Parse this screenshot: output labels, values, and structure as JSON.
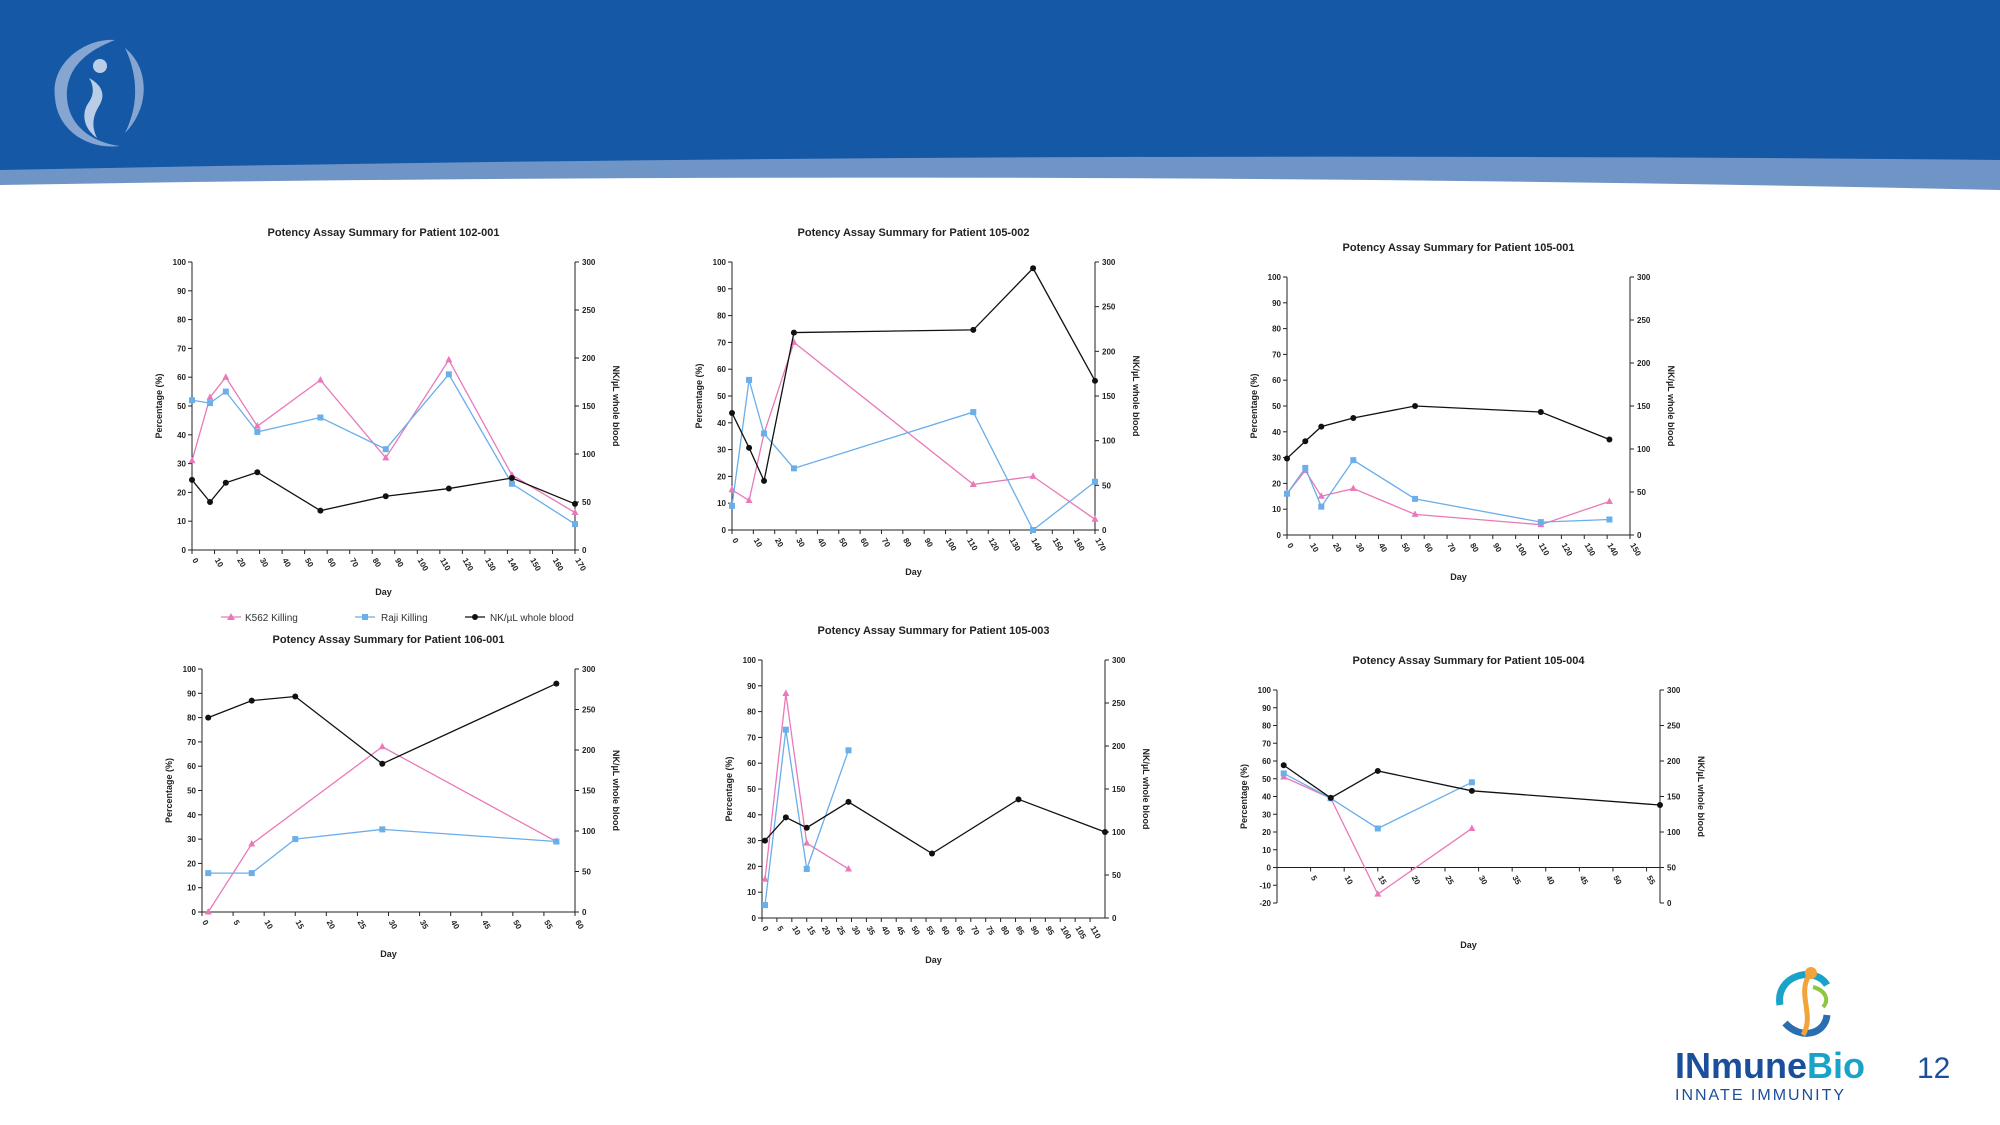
{
  "slide": {
    "page_number": "12"
  },
  "brand": {
    "name_part1": "INmune",
    "name_part2": "Bio",
    "tagline": "INNATE IMMUNITY"
  },
  "legend": {
    "k562_label": "K562 Killing",
    "raji_label": "Raji Killing",
    "nk_label": "NK/µL whole blood"
  },
  "colors": {
    "header": "#1458a6",
    "header_light": "#6f95c6",
    "k562": "#ea79b9",
    "raji": "#6aaeea",
    "nk": "#111111"
  },
  "chart_data": [
    {
      "id": "p102-001",
      "type": "line",
      "title": "Potency Assay Summary for Patient 102-001",
      "xlabel": "Day",
      "ylabel": "Percentage (%)",
      "y2label": "NK/µL whole blood",
      "xlim": [
        0,
        170
      ],
      "xticks": [
        0,
        10,
        20,
        30,
        40,
        50,
        60,
        70,
        80,
        90,
        100,
        110,
        120,
        130,
        140,
        150,
        160,
        170
      ],
      "ylim": [
        0,
        100
      ],
      "yticks": [
        0,
        10,
        20,
        30,
        40,
        50,
        60,
        70,
        80,
        90,
        100
      ],
      "y2lim": [
        0,
        300
      ],
      "y2ticks": [
        0,
        50,
        100,
        150,
        200,
        250,
        300
      ],
      "series": [
        {
          "name": "K562 Killing",
          "axis": "y",
          "marker": "triangle",
          "x": [
            0,
            8,
            15,
            29,
            57,
            86,
            114,
            142,
            170
          ],
          "values": [
            31,
            53,
            60,
            43,
            59,
            32,
            66,
            26,
            13
          ]
        },
        {
          "name": "Raji Killing",
          "axis": "y",
          "marker": "square",
          "x": [
            0,
            8,
            15,
            29,
            57,
            86,
            114,
            142,
            170
          ],
          "values": [
            52,
            51,
            55,
            41,
            46,
            35,
            61,
            23,
            9
          ]
        },
        {
          "name": "NK/µL whole blood",
          "axis": "y2",
          "marker": "circle",
          "x": [
            0,
            8,
            15,
            29,
            57,
            86,
            114,
            142,
            170
          ],
          "values": [
            73,
            50,
            70,
            81,
            41,
            56,
            64,
            75,
            48
          ]
        }
      ]
    },
    {
      "id": "p105-002",
      "type": "line",
      "title": "Potency  Assay  Summary for Patient 105-002",
      "xlabel": "Day",
      "ylabel": "Percentage (%)",
      "y2label": "NK/µL whole blood",
      "xlim": [
        0,
        170
      ],
      "xticks": [
        0,
        10,
        20,
        30,
        40,
        50,
        60,
        70,
        80,
        90,
        100,
        110,
        120,
        130,
        140,
        150,
        160,
        170
      ],
      "ylim": [
        0,
        100
      ],
      "yticks": [
        0,
        10,
        20,
        30,
        40,
        50,
        60,
        70,
        80,
        90,
        100
      ],
      "y2lim": [
        0,
        300
      ],
      "y2ticks": [
        0,
        50,
        100,
        150,
        200,
        250,
        300
      ],
      "series": [
        {
          "name": "K562 Killing",
          "axis": "y",
          "marker": "triangle",
          "x": [
            0,
            8,
            15,
            29,
            113,
            141,
            170
          ],
          "values": [
            15,
            11,
            36,
            70,
            17,
            20,
            4
          ]
        },
        {
          "name": "Raji Killing",
          "axis": "y",
          "marker": "square",
          "x": [
            0,
            8,
            15,
            29,
            113,
            141,
            170
          ],
          "values": [
            9,
            56,
            36,
            23,
            44,
            0,
            18
          ]
        },
        {
          "name": "NK/µL whole blood",
          "axis": "y2",
          "marker": "circle",
          "x": [
            0,
            8,
            15,
            29,
            113,
            141,
            170
          ],
          "values": [
            131,
            92,
            55,
            221,
            224,
            293,
            167
          ]
        }
      ]
    },
    {
      "id": "p105-001",
      "type": "line",
      "title": "Potency  Assay  Summary for Patient 105-001",
      "xlabel": "Day",
      "ylabel": "Percentage (%)",
      "y2label": "NK/µL whole blood",
      "xlim": [
        0,
        150
      ],
      "xticks": [
        0,
        10,
        20,
        30,
        40,
        50,
        60,
        70,
        80,
        90,
        100,
        110,
        120,
        130,
        140,
        150
      ],
      "ylim": [
        0,
        100
      ],
      "yticks": [
        0,
        10,
        20,
        30,
        40,
        50,
        60,
        70,
        80,
        90,
        100
      ],
      "y2lim": [
        0,
        300
      ],
      "y2ticks": [
        0,
        50,
        100,
        150,
        200,
        250,
        300
      ],
      "series": [
        {
          "name": "K562 Killing",
          "axis": "y",
          "marker": "triangle",
          "x": [
            0,
            8,
            15,
            29,
            56,
            111,
            141
          ],
          "values": [
            16,
            25,
            15,
            18,
            8,
            4,
            13
          ]
        },
        {
          "name": "Raji Killing",
          "axis": "y",
          "marker": "square",
          "x": [
            0,
            8,
            15,
            29,
            56,
            111,
            141
          ],
          "values": [
            16,
            26,
            11,
            29,
            14,
            5,
            6
          ]
        },
        {
          "name": "NK/µL whole blood",
          "axis": "y2",
          "marker": "circle",
          "x": [
            0,
            8,
            15,
            29,
            56,
            111,
            141
          ],
          "values": [
            89,
            109,
            126,
            136,
            150,
            143,
            111
          ]
        }
      ]
    },
    {
      "id": "p106-001",
      "type": "line",
      "title": "Potency Assay Summary for Patient 106-001",
      "xlabel": "Day",
      "ylabel": "Percentage (%)",
      "y2label": "NK/µL whole blood",
      "xlim": [
        0,
        60
      ],
      "xticks": [
        0,
        5,
        10,
        15,
        20,
        25,
        30,
        35,
        40,
        45,
        50,
        55,
        60
      ],
      "ylim": [
        0,
        100
      ],
      "yticks": [
        0,
        10,
        20,
        30,
        40,
        50,
        60,
        70,
        80,
        90,
        100
      ],
      "y2lim": [
        0,
        300
      ],
      "y2ticks": [
        0,
        50,
        100,
        150,
        200,
        250,
        300
      ],
      "series": [
        {
          "name": "K562 Killing",
          "axis": "y",
          "marker": "triangle",
          "x": [
            1,
            8,
            15,
            29,
            57
          ],
          "values": [
            0,
            28,
            null,
            68,
            29
          ]
        },
        {
          "name": "Raji Killing",
          "axis": "y",
          "marker": "square",
          "x": [
            1,
            8,
            15,
            29,
            57
          ],
          "values": [
            16,
            16,
            30,
            34,
            29
          ]
        },
        {
          "name": "NK/µL whole blood",
          "axis": "y2",
          "marker": "circle",
          "x": [
            1,
            8,
            15,
            29,
            57
          ],
          "values": [
            240,
            261,
            266,
            183,
            282
          ]
        }
      ]
    },
    {
      "id": "p105-003",
      "type": "line",
      "title": "Potency Assay Summary for Patient 105-003",
      "xlabel": "Day",
      "ylabel": "Percentage (%)",
      "y2label": "NK/µL whole blood",
      "xlim": [
        0,
        115
      ],
      "xticks": [
        0,
        5,
        10,
        15,
        20,
        25,
        30,
        35,
        40,
        45,
        50,
        55,
        60,
        65,
        70,
        75,
        80,
        85,
        90,
        95,
        100,
        105,
        110
      ],
      "ylim": [
        0,
        100
      ],
      "yticks": [
        0,
        10,
        20,
        30,
        40,
        50,
        60,
        70,
        80,
        90,
        100
      ],
      "y2lim": [
        0,
        300
      ],
      "y2ticks": [
        0,
        50,
        100,
        150,
        200,
        250,
        300
      ],
      "series": [
        {
          "name": "K562 Killing",
          "axis": "y",
          "marker": "triangle",
          "x": [
            1,
            8,
            15,
            29
          ],
          "values": [
            15,
            87,
            29,
            19
          ]
        },
        {
          "name": "Raji Killing",
          "axis": "y",
          "marker": "square",
          "x": [
            1,
            8,
            15,
            29
          ],
          "values": [
            5,
            73,
            19,
            65
          ]
        },
        {
          "name": "NK/µL whole blood",
          "axis": "y2",
          "marker": "circle",
          "x": [
            1,
            8,
            15,
            29,
            57,
            86,
            115
          ],
          "values": [
            90,
            117,
            105,
            135,
            75,
            138,
            100
          ]
        }
      ]
    },
    {
      "id": "p105-004",
      "type": "line",
      "title": "Potency Assay Summary for Patient 105-004",
      "xlabel": "Day",
      "ylabel": "Percentage (%)",
      "y2label": "NK/µL whole blood",
      "xlim": [
        0,
        57
      ],
      "xticks": [
        5,
        10,
        15,
        20,
        25,
        30,
        35,
        40,
        45,
        50,
        55
      ],
      "ylim": [
        -20,
        100
      ],
      "yticks": [
        -20,
        -10,
        0,
        10,
        20,
        30,
        40,
        50,
        60,
        70,
        80,
        90,
        100
      ],
      "y2lim": [
        0,
        300
      ],
      "y2ticks": [
        0,
        50,
        100,
        150,
        200,
        250,
        300
      ],
      "series": [
        {
          "name": "K562 Killing",
          "axis": "y",
          "marker": "triangle",
          "x": [
            1,
            8,
            15,
            29
          ],
          "values": [
            51,
            39,
            -15,
            22
          ]
        },
        {
          "name": "Raji Killing",
          "axis": "y",
          "marker": "square",
          "x": [
            1,
            8,
            15,
            29
          ],
          "values": [
            53,
            39,
            22,
            48
          ]
        },
        {
          "name": "NK/µL whole blood",
          "axis": "y2",
          "marker": "circle",
          "x": [
            1,
            8,
            15,
            29,
            57
          ],
          "values": [
            194,
            148,
            186,
            158,
            138
          ]
        }
      ]
    }
  ]
}
